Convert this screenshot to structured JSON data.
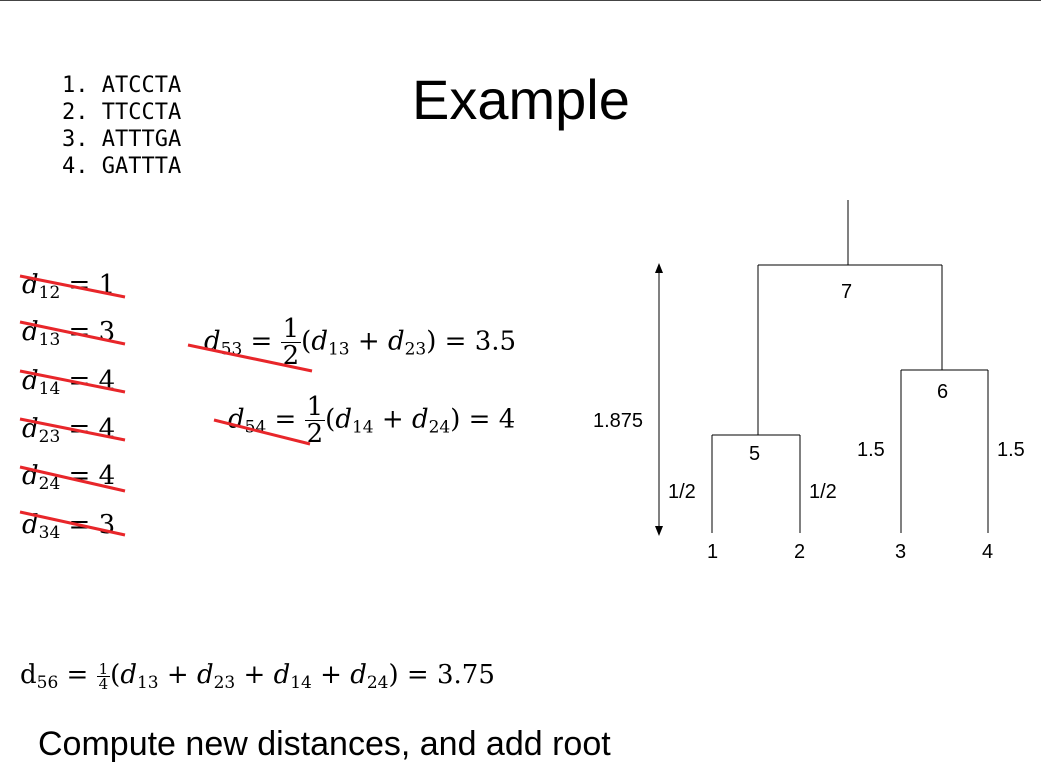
{
  "title": "Example",
  "sequences": [
    "1. ATCCTA",
    "2. TTCCTA",
    "3. ATTTGA",
    "4. GATTTA"
  ],
  "distances": [
    {
      "label": "d",
      "sub": "12",
      "value": "1"
    },
    {
      "label": "d",
      "sub": "13",
      "value": "3"
    },
    {
      "label": "d",
      "sub": "14",
      "value": "4"
    },
    {
      "label": "d",
      "sub": "23",
      "value": "4"
    },
    {
      "label": "d",
      "sub": "24",
      "value": "4"
    },
    {
      "label": "d",
      "sub": "34",
      "value": "3"
    }
  ],
  "formula_d53": {
    "lhs": "d",
    "lhs_sub": "53",
    "num": "1",
    "den": "2",
    "a": "d",
    "a_sub": "13",
    "b": "d",
    "b_sub": "23",
    "result": "3.5"
  },
  "formula_d54": {
    "lhs": "d",
    "lhs_sub": "54",
    "num": "1",
    "den": "2",
    "a": "d",
    "a_sub": "14",
    "b": "d",
    "b_sub": "24",
    "result": "4"
  },
  "formula_d56": {
    "lhs": "d",
    "lhs_sub": "56",
    "num": "1",
    "den": "4",
    "terms": [
      "13",
      "23",
      "14",
      "24"
    ],
    "result": "3.75"
  },
  "tree": {
    "leaves": [
      "1",
      "2",
      "3",
      "4"
    ],
    "internal_nodes": [
      "5",
      "6",
      "7"
    ],
    "branch_labels": {
      "node5_left": "1/2",
      "node5_right": "1/2",
      "node6_left": "1.5",
      "node6_right": "1.5"
    },
    "height_label": "1.875"
  },
  "strike_color": "#e8262a",
  "caption": "Compute new distances, and add root"
}
